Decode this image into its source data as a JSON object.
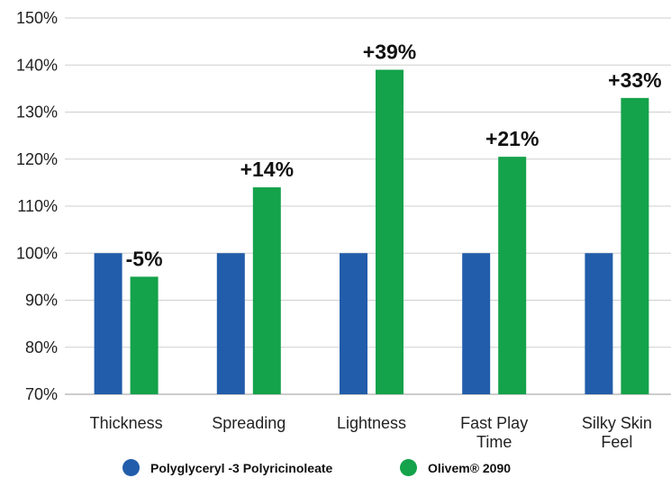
{
  "chart_data": {
    "type": "bar",
    "categories": [
      [
        "Thickness"
      ],
      [
        "Spreading"
      ],
      [
        "Lightness"
      ],
      [
        "Fast Play",
        "Time"
      ],
      [
        "Silky Skin",
        "Feel"
      ]
    ],
    "series": [
      {
        "name": "Polyglyceryl -3 Polyricinoleate",
        "values": [
          100,
          100,
          100,
          100,
          100
        ],
        "color": "#215DAA"
      },
      {
        "name": "Olivem® 2090",
        "values": [
          95,
          114,
          139,
          120.5,
          133
        ],
        "color": "#14A24A"
      }
    ],
    "data_labels": [
      "-5%",
      "+14%",
      "+39%",
      "+21%",
      "+33%"
    ],
    "yticks": [
      "70%",
      "80%",
      "90%",
      "100%",
      "110%",
      "120%",
      "130%",
      "140%",
      "150%"
    ],
    "ylim": [
      70,
      150
    ],
    "grid": true,
    "legend": "bottom"
  }
}
